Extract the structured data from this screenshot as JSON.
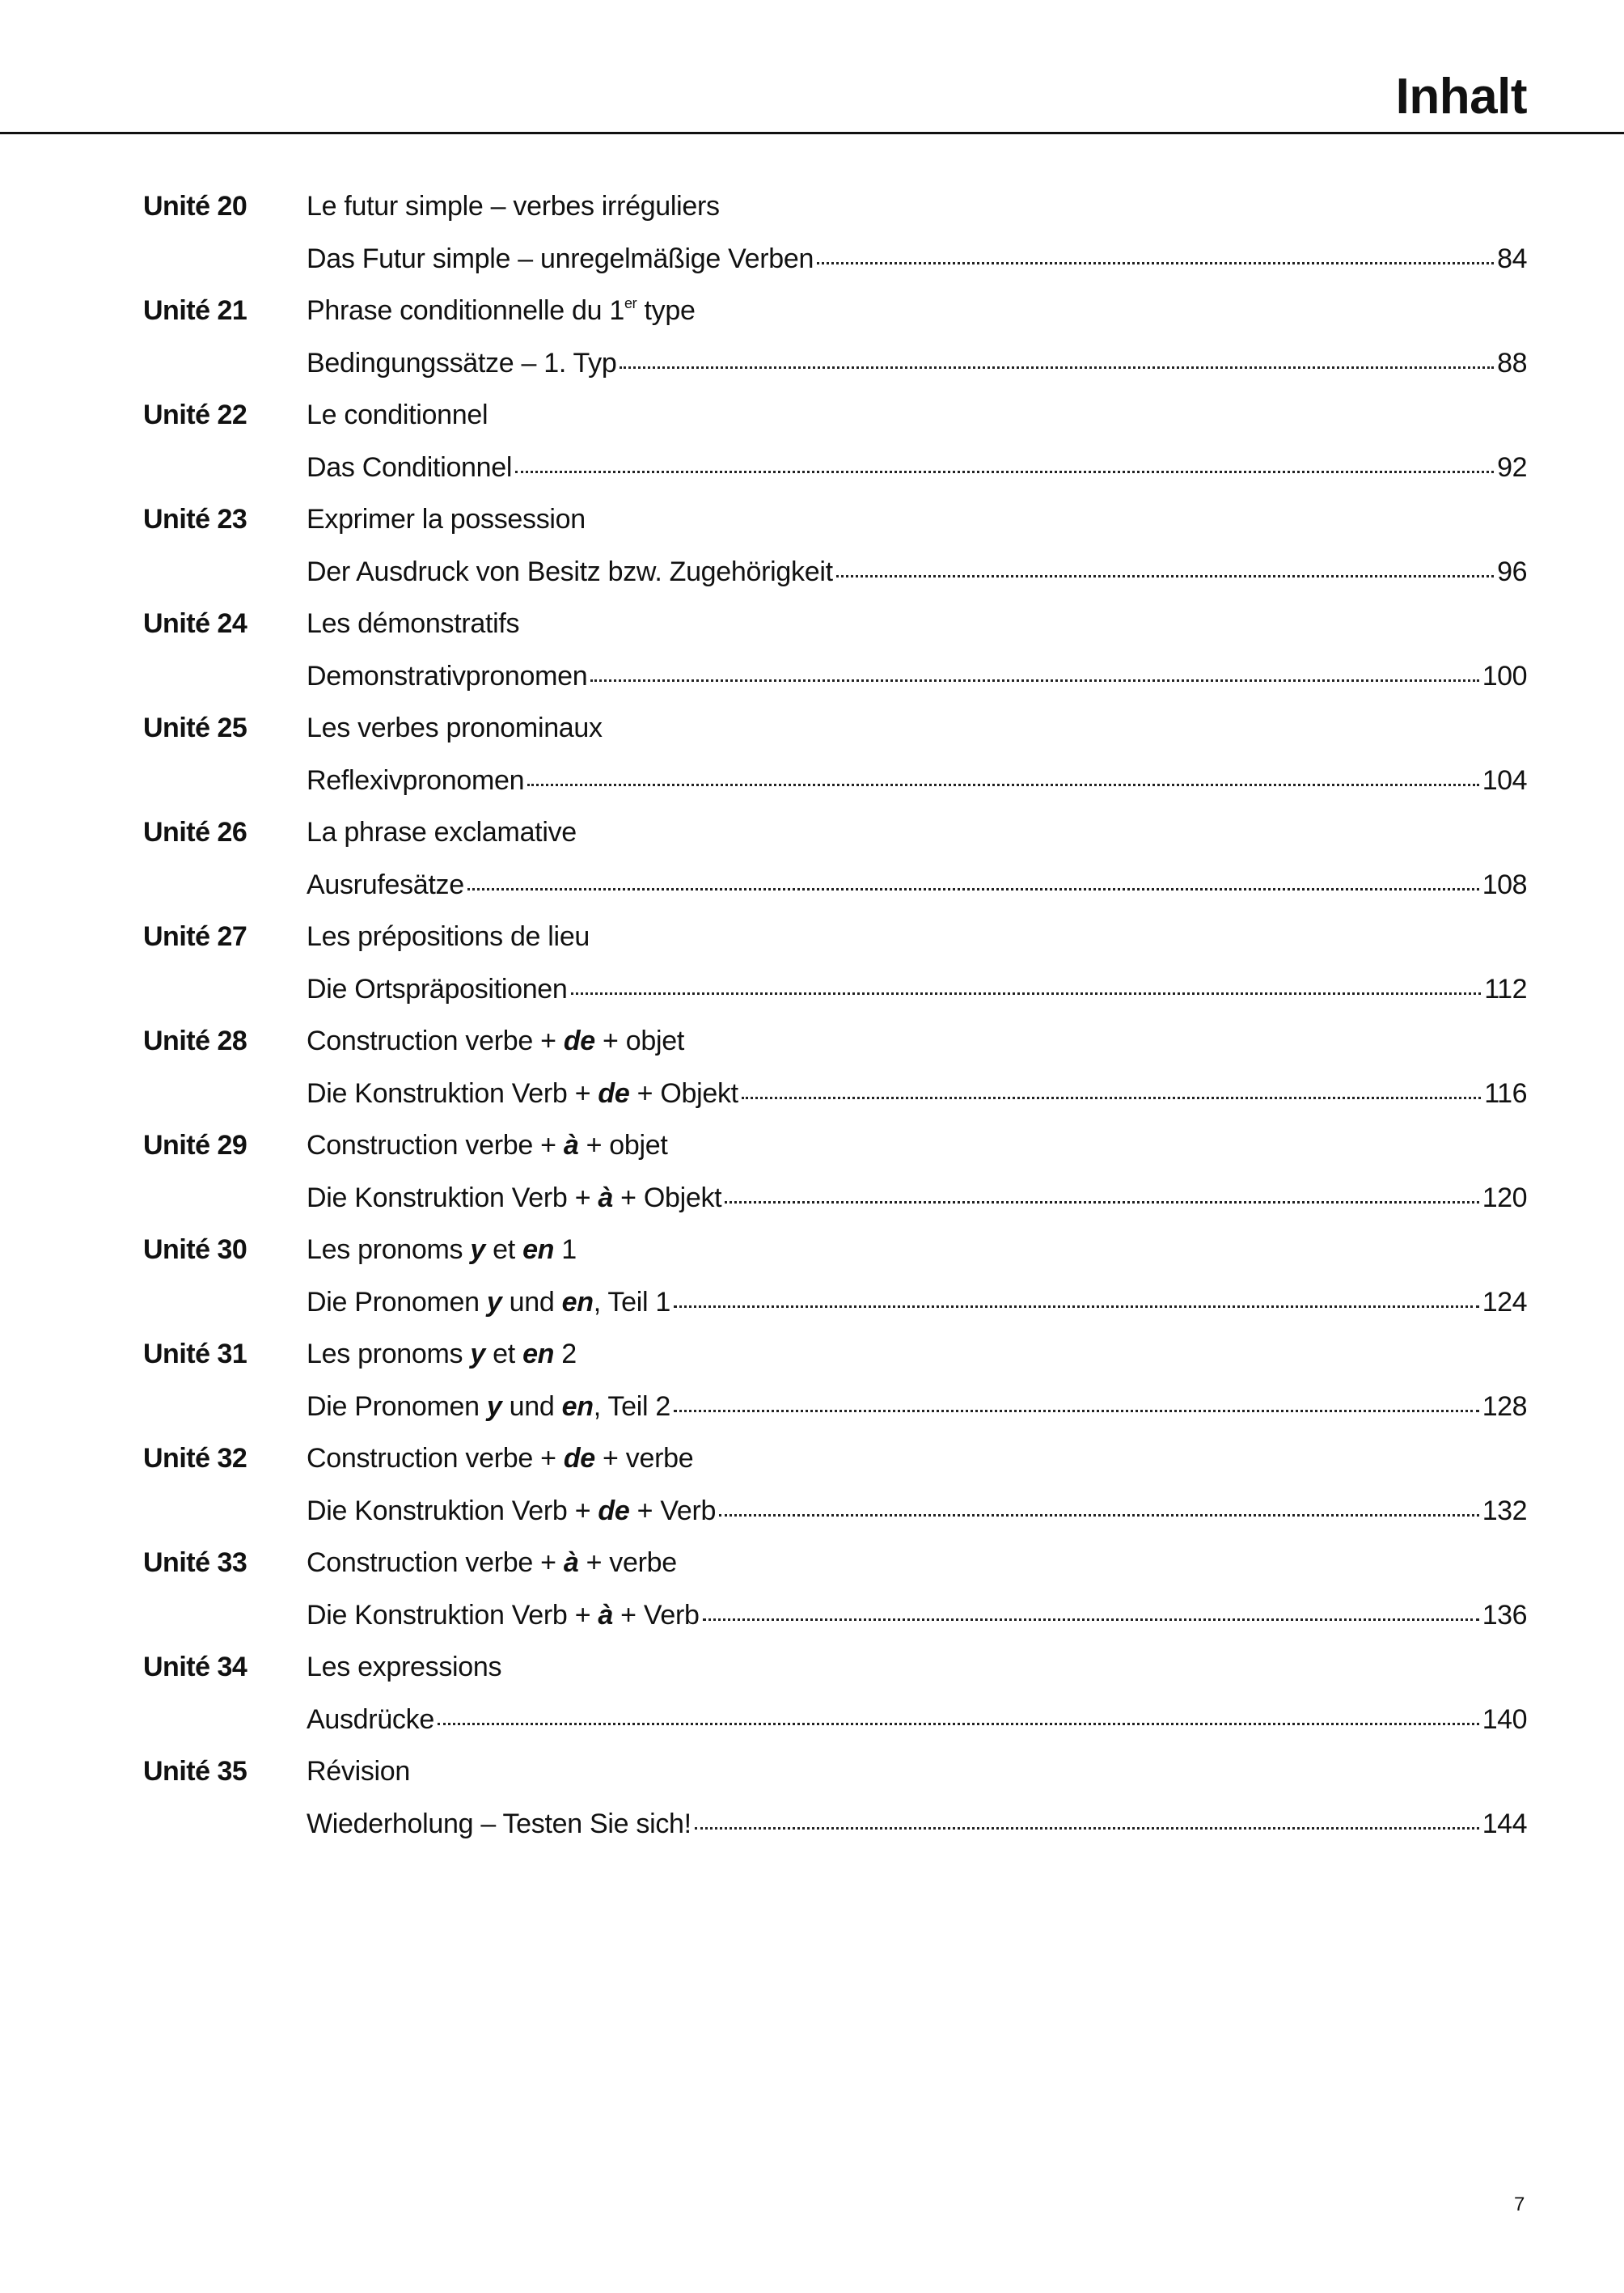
{
  "header": {
    "title": "Inhalt"
  },
  "entries": [
    {
      "unit": "Unité 20",
      "fr": [
        {
          "t": "Le futur simple – verbes irréguliers"
        }
      ],
      "de": [
        {
          "t": "Das Futur simple – unregelmäßige Verben"
        }
      ],
      "page": "84"
    },
    {
      "unit": "Unité 21",
      "fr": [
        {
          "t": "Phrase conditionnelle du 1"
        },
        {
          "t": "er",
          "sup": true
        },
        {
          "t": " type"
        }
      ],
      "de": [
        {
          "t": "Bedingungssätze – 1. Typ"
        }
      ],
      "page": "88"
    },
    {
      "unit": "Unité 22",
      "fr": [
        {
          "t": "Le conditionnel"
        }
      ],
      "de": [
        {
          "t": "Das Conditionnel"
        }
      ],
      "page": "92"
    },
    {
      "unit": "Unité 23",
      "fr": [
        {
          "t": "Exprimer la possession"
        }
      ],
      "de": [
        {
          "t": "Der Ausdruck von Besitz bzw. Zugehörigkeit"
        }
      ],
      "page": "96"
    },
    {
      "unit": "Unité 24",
      "fr": [
        {
          "t": "Les démonstratifs"
        }
      ],
      "de": [
        {
          "t": "Demonstrativpronomen"
        }
      ],
      "page": "100"
    },
    {
      "unit": "Unité 25",
      "fr": [
        {
          "t": "Les verbes pronominaux"
        }
      ],
      "de": [
        {
          "t": "Reflexivpronomen"
        }
      ],
      "page": "104"
    },
    {
      "unit": "Unité 26",
      "fr": [
        {
          "t": "La phrase exclamative"
        }
      ],
      "de": [
        {
          "t": "Ausrufesätze"
        }
      ],
      "page": "108"
    },
    {
      "unit": "Unité 27",
      "fr": [
        {
          "t": "Les prépositions de lieu"
        }
      ],
      "de": [
        {
          "t": "Die Ortspräpositionen"
        }
      ],
      "page": "112"
    },
    {
      "unit": "Unité 28",
      "fr": [
        {
          "t": "Construction verbe + "
        },
        {
          "t": "de",
          "bi": true
        },
        {
          "t": " + objet"
        }
      ],
      "de": [
        {
          "t": "Die Konstruktion Verb + "
        },
        {
          "t": "de",
          "bi": true
        },
        {
          "t": " + Objekt"
        }
      ],
      "page": "116"
    },
    {
      "unit": "Unité 29",
      "fr": [
        {
          "t": "Construction verbe + "
        },
        {
          "t": "à",
          "bi": true
        },
        {
          "t": " + objet"
        }
      ],
      "de": [
        {
          "t": "Die Konstruktion Verb + "
        },
        {
          "t": "à",
          "bi": true
        },
        {
          "t": " + Objekt"
        }
      ],
      "page": "120"
    },
    {
      "unit": "Unité 30",
      "fr": [
        {
          "t": "Les pronoms "
        },
        {
          "t": "y",
          "bi": true
        },
        {
          "t": " et "
        },
        {
          "t": "en",
          "bi": true
        },
        {
          "t": " 1"
        }
      ],
      "de": [
        {
          "t": "Die Pronomen "
        },
        {
          "t": "y",
          "bi": true
        },
        {
          "t": " und "
        },
        {
          "t": "en",
          "bi": true
        },
        {
          "t": ", Teil 1"
        }
      ],
      "page": "124"
    },
    {
      "unit": "Unité 31",
      "fr": [
        {
          "t": "Les pronoms "
        },
        {
          "t": "y",
          "bi": true
        },
        {
          "t": " et "
        },
        {
          "t": "en",
          "bi": true
        },
        {
          "t": " 2"
        }
      ],
      "de": [
        {
          "t": "Die Pronomen "
        },
        {
          "t": "y",
          "bi": true
        },
        {
          "t": " und "
        },
        {
          "t": "en",
          "bi": true
        },
        {
          "t": ", Teil 2"
        }
      ],
      "page": "128"
    },
    {
      "unit": "Unité 32",
      "fr": [
        {
          "t": "Construction verbe + "
        },
        {
          "t": "de",
          "bi": true
        },
        {
          "t": " + verbe"
        }
      ],
      "de": [
        {
          "t": "Die Konstruktion Verb + "
        },
        {
          "t": "de",
          "bi": true
        },
        {
          "t": " + Verb"
        }
      ],
      "page": "132"
    },
    {
      "unit": "Unité 33",
      "fr": [
        {
          "t": "Construction verbe + "
        },
        {
          "t": "à",
          "bi": true
        },
        {
          "t": " + verbe"
        }
      ],
      "de": [
        {
          "t": "Die Konstruktion Verb + "
        },
        {
          "t": "à",
          "bi": true
        },
        {
          "t": " + Verb"
        }
      ],
      "page": "136"
    },
    {
      "unit": "Unité 34",
      "fr": [
        {
          "t": "Les expressions"
        }
      ],
      "de": [
        {
          "t": "Ausdrücke"
        }
      ],
      "page": "140"
    },
    {
      "unit": "Unité 35",
      "fr": [
        {
          "t": "Révision"
        }
      ],
      "de": [
        {
          "t": "Wiederholung – Testen Sie sich!"
        }
      ],
      "page": "144"
    }
  ],
  "footer": {
    "page_number": "7"
  }
}
